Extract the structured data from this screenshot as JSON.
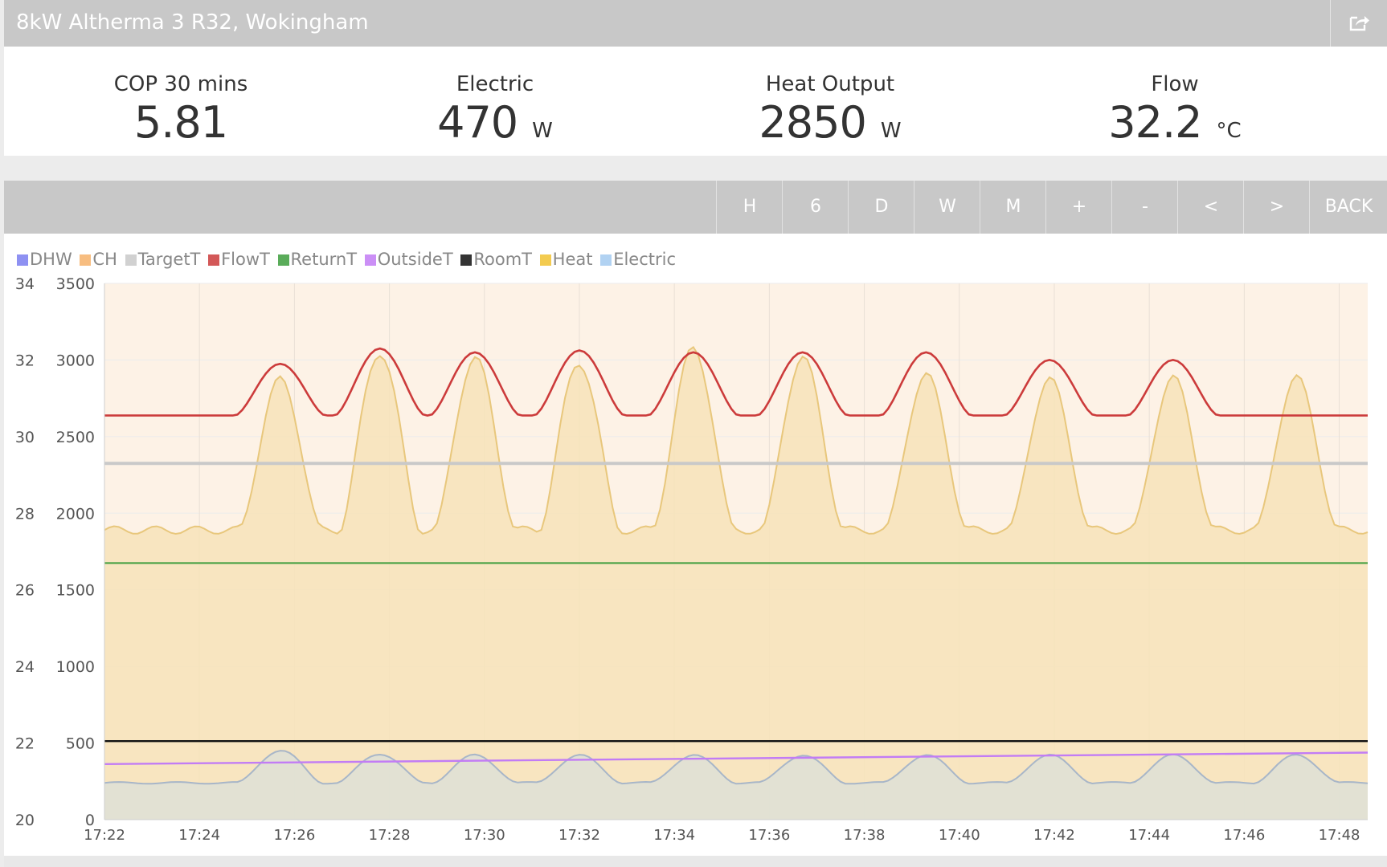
{
  "header": {
    "title": "8kW Altherma 3 R32, Wokingham",
    "share_icon": "share-icon"
  },
  "stats": [
    {
      "label": "COP 30 mins",
      "value": "5.81",
      "unit": ""
    },
    {
      "label": "Electric",
      "value": "470",
      "unit": "W"
    },
    {
      "label": "Heat Output",
      "value": "2850",
      "unit": "W"
    },
    {
      "label": "Flow",
      "value": "32.2",
      "unit": "°C"
    }
  ],
  "toolbar": {
    "buttons": [
      "H",
      "6",
      "D",
      "W",
      "M",
      "+",
      "-",
      "<",
      ">",
      "BACK"
    ]
  },
  "legend": [
    {
      "name": "DHW",
      "color": "#7b7ef0"
    },
    {
      "name": "CH",
      "color": "#f6b26b"
    },
    {
      "name": "TargetT",
      "color": "#c9c9c9"
    },
    {
      "name": "FlowT",
      "color": "#cc3b3b"
    },
    {
      "name": "ReturnT",
      "color": "#3e9e3e"
    },
    {
      "name": "OutsideT",
      "color": "#c27cf5"
    },
    {
      "name": "RoomT",
      "color": "#111111"
    },
    {
      "name": "Heat",
      "color": "#f1c232"
    },
    {
      "name": "Electric",
      "color": "#a4cbf0"
    }
  ],
  "chart_data": {
    "type": "line",
    "x_ticks": [
      "17:22",
      "17:24",
      "17:26",
      "17:28",
      "17:30",
      "17:32",
      "17:34",
      "17:36",
      "17:38",
      "17:40",
      "17:42",
      "17:44",
      "17:46",
      "17:48"
    ],
    "x_range_minutes": [
      0,
      26.6
    ],
    "y_left": {
      "range": [
        20,
        34
      ],
      "ticks": [
        "20",
        "22",
        "24",
        "26",
        "28",
        "30",
        "32",
        "34"
      ]
    },
    "y_right": {
      "range": [
        0,
        3500
      ],
      "ticks": [
        "0",
        "500",
        "1000",
        "1500",
        "2000",
        "2500",
        "3000",
        "3500"
      ]
    },
    "grid": true,
    "legend_position": "top-left",
    "ch_active": true,
    "series": [
      {
        "name": "FlowT",
        "axis": "left",
        "color": "#cc3b3b",
        "base": 30.55,
        "peak_minutes": [
          0,
          3.7,
          5.8,
          7.8,
          10.0,
          12.4,
          14.7,
          17.3,
          19.9,
          22.5,
          25.1
        ],
        "peak_values": [
          0,
          31.9,
          32.3,
          32.2,
          32.25,
          32.2,
          32.2,
          32.2,
          32.0,
          32.0,
          0
        ]
      },
      {
        "name": "Heat",
        "axis": "right",
        "color": "#e8c77c",
        "base": 1890,
        "peak_minutes": [
          3.7,
          5.8,
          7.8,
          10.0,
          12.4,
          14.7,
          17.3,
          19.9,
          22.5,
          25.1
        ],
        "peak_values": [
          2870,
          3050,
          3010,
          2980,
          3070,
          3010,
          2900,
          2870,
          2880,
          2880
        ]
      },
      {
        "name": "TargetT",
        "axis": "left",
        "color": "#c9c9c9",
        "value": 29.3
      },
      {
        "name": "ReturnT",
        "axis": "left",
        "color": "#3e9e3e",
        "value": 26.7
      },
      {
        "name": "RoomT",
        "axis": "left",
        "color": "#111111",
        "value": 22.05
      },
      {
        "name": "OutsideT",
        "axis": "left",
        "color": "#c27cf5",
        "start": 21.45,
        "end": 21.75
      },
      {
        "name": "Electric",
        "axis": "right",
        "color": "#a8b6c8",
        "base": 240,
        "peak_minutes": [
          3.7,
          5.8,
          7.8,
          10.0,
          12.4,
          14.7,
          17.3,
          19.9,
          22.5,
          25.1
        ],
        "peak_values": [
          450,
          430,
          420,
          420,
          420,
          420,
          420,
          420,
          420,
          420
        ]
      }
    ]
  }
}
